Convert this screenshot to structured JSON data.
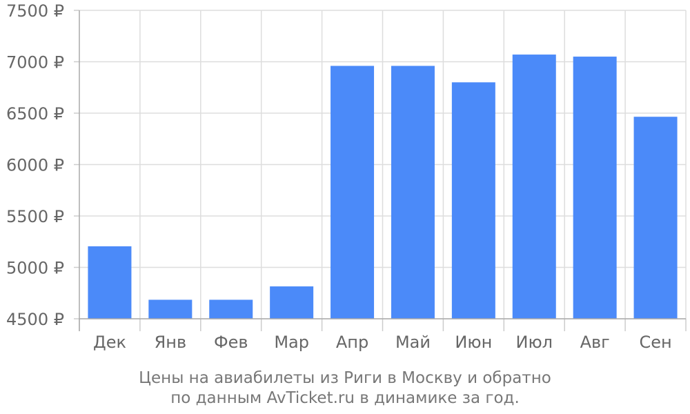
{
  "chart_data": {
    "type": "bar",
    "categories": [
      "Дек",
      "Янв",
      "Фев",
      "Мар",
      "Апр",
      "Май",
      "Июн",
      "Июл",
      "Авг",
      "Сен"
    ],
    "values": [
      5205,
      4685,
      4685,
      4815,
      6960,
      6960,
      6800,
      7070,
      7050,
      6465
    ],
    "y_ticks": [
      "4500 ₽",
      "5000 ₽",
      "5500 ₽",
      "6000 ₽",
      "6500 ₽",
      "7000 ₽",
      "7500 ₽"
    ],
    "y_tick_values": [
      4500,
      5000,
      5500,
      6000,
      6500,
      7000,
      7500
    ],
    "ylim": [
      4500,
      7500
    ],
    "grid": true,
    "bar_color": "#4b8af9",
    "caption_line1": "Цены на авиабилеты из Риги в Москву и обратно",
    "caption_line2": "по данным AvTicket.ru в динамике за год."
  }
}
